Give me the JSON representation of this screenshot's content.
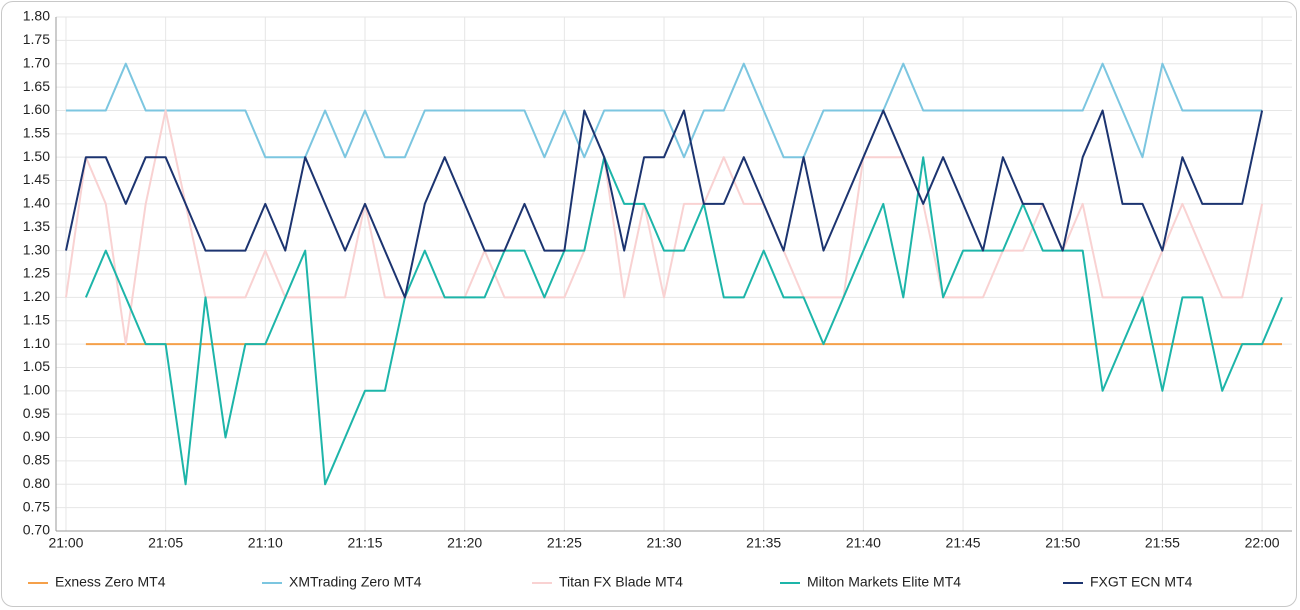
{
  "chart_data": {
    "type": "line",
    "x": [
      0,
      1,
      2,
      3,
      4,
      5,
      6,
      7,
      8,
      9,
      10,
      11,
      12,
      13,
      14,
      15,
      16,
      17,
      18,
      19,
      20,
      21,
      22,
      23,
      24,
      25,
      26,
      27,
      28,
      29,
      30,
      31,
      32,
      33,
      34,
      35,
      36,
      37,
      38,
      39,
      40,
      41,
      42,
      43,
      44,
      45,
      46,
      47,
      48,
      49,
      50,
      51,
      52,
      53,
      54,
      55,
      56,
      57,
      58,
      59,
      60,
      61
    ],
    "xlim": [
      -0.5,
      61.5
    ],
    "xticks": [
      {
        "value": 0,
        "label": "21:00"
      },
      {
        "value": 5,
        "label": "21:05"
      },
      {
        "value": 10,
        "label": "21:10"
      },
      {
        "value": 15,
        "label": "21:15"
      },
      {
        "value": 20,
        "label": "21:20"
      },
      {
        "value": 25,
        "label": "21:25"
      },
      {
        "value": 30,
        "label": "21:30"
      },
      {
        "value": 35,
        "label": "21:35"
      },
      {
        "value": 40,
        "label": "21:40"
      },
      {
        "value": 45,
        "label": "21:45"
      },
      {
        "value": 50,
        "label": "21:50"
      },
      {
        "value": 55,
        "label": "21:55"
      },
      {
        "value": 60,
        "label": "22:00"
      }
    ],
    "ylim": [
      0.7,
      1.8
    ],
    "yticks": [
      {
        "value": 0.7,
        "label": "0.70"
      },
      {
        "value": 0.75,
        "label": "0.75"
      },
      {
        "value": 0.8,
        "label": "0.80"
      },
      {
        "value": 0.85,
        "label": "0.85"
      },
      {
        "value": 0.9,
        "label": "0.90"
      },
      {
        "value": 0.95,
        "label": "0.95"
      },
      {
        "value": 1.0,
        "label": "1.00"
      },
      {
        "value": 1.05,
        "label": "1.05"
      },
      {
        "value": 1.1,
        "label": "1.10"
      },
      {
        "value": 1.15,
        "label": "1.15"
      },
      {
        "value": 1.2,
        "label": "1.20"
      },
      {
        "value": 1.25,
        "label": "1.25"
      },
      {
        "value": 1.3,
        "label": "1.30"
      },
      {
        "value": 1.35,
        "label": "1.35"
      },
      {
        "value": 1.4,
        "label": "1.40"
      },
      {
        "value": 1.45,
        "label": "1.45"
      },
      {
        "value": 1.5,
        "label": "1.50"
      },
      {
        "value": 1.55,
        "label": "1.55"
      },
      {
        "value": 1.6,
        "label": "1.60"
      },
      {
        "value": 1.65,
        "label": "1.65"
      },
      {
        "value": 1.7,
        "label": "1.70"
      },
      {
        "value": 1.75,
        "label": "1.75"
      },
      {
        "value": 1.8,
        "label": "1.80"
      }
    ],
    "grid": true,
    "legend": "bottom",
    "series": [
      {
        "name": "Exness Zero MT4",
        "color": "#f5a04a",
        "values": [
          null,
          1.1,
          1.1,
          1.1,
          1.1,
          1.1,
          1.1,
          1.1,
          1.1,
          1.1,
          1.1,
          1.1,
          1.1,
          1.1,
          1.1,
          1.1,
          1.1,
          1.1,
          1.1,
          1.1,
          1.1,
          1.1,
          1.1,
          1.1,
          1.1,
          1.1,
          1.1,
          1.1,
          1.1,
          1.1,
          1.1,
          1.1,
          1.1,
          1.1,
          1.1,
          1.1,
          1.1,
          1.1,
          1.1,
          1.1,
          1.1,
          1.1,
          1.1,
          1.1,
          1.1,
          1.1,
          1.1,
          1.1,
          1.1,
          1.1,
          1.1,
          1.1,
          1.1,
          1.1,
          1.1,
          1.1,
          1.1,
          1.1,
          1.1,
          1.1,
          1.1,
          1.1
        ]
      },
      {
        "name": "XMTrading Zero MT4",
        "color": "#7cc6e0",
        "values": [
          1.6,
          1.6,
          1.6,
          1.7,
          1.6,
          1.6,
          1.6,
          1.6,
          1.6,
          1.6,
          1.5,
          1.5,
          1.5,
          1.6,
          1.5,
          1.6,
          1.5,
          1.5,
          1.6,
          1.6,
          1.6,
          1.6,
          1.6,
          1.6,
          1.5,
          1.6,
          1.5,
          1.6,
          1.6,
          1.6,
          1.6,
          1.5,
          1.6,
          1.6,
          1.7,
          1.6,
          1.5,
          1.5,
          1.6,
          1.6,
          1.6,
          1.6,
          1.7,
          1.6,
          1.6,
          1.6,
          1.6,
          1.6,
          1.6,
          1.6,
          1.6,
          1.6,
          1.7,
          1.6,
          1.5,
          1.7,
          1.6,
          1.6,
          1.6,
          1.6,
          1.6,
          null
        ]
      },
      {
        "name": "Titan FX Blade MT4",
        "color": "#f9d2d2",
        "values": [
          1.2,
          1.5,
          1.4,
          1.1,
          1.4,
          1.6,
          1.4,
          1.2,
          1.2,
          1.2,
          1.3,
          1.2,
          1.2,
          1.2,
          1.2,
          1.4,
          1.2,
          1.2,
          1.2,
          1.2,
          1.2,
          1.3,
          1.2,
          1.2,
          1.2,
          1.2,
          1.3,
          1.5,
          1.2,
          1.4,
          1.2,
          1.4,
          1.4,
          1.5,
          1.4,
          1.4,
          1.3,
          1.2,
          1.2,
          1.2,
          1.5,
          1.5,
          1.5,
          1.4,
          1.2,
          1.2,
          1.2,
          1.3,
          1.3,
          1.4,
          1.3,
          1.4,
          1.2,
          1.2,
          1.2,
          1.3,
          1.4,
          1.3,
          1.2,
          1.2,
          1.4,
          null
        ]
      },
      {
        "name": "Milton Markets Elite MT4",
        "color": "#1db5a9",
        "values": [
          null,
          1.2,
          1.3,
          1.2,
          1.1,
          1.1,
          0.8,
          1.2,
          0.9,
          1.1,
          1.1,
          1.2,
          1.3,
          0.8,
          0.9,
          1.0,
          1.0,
          1.2,
          1.3,
          1.2,
          1.2,
          1.2,
          1.3,
          1.3,
          1.2,
          1.3,
          1.3,
          1.5,
          1.4,
          1.4,
          1.3,
          1.3,
          1.4,
          1.2,
          1.2,
          1.3,
          1.2,
          1.2,
          1.1,
          1.2,
          1.3,
          1.4,
          1.2,
          1.5,
          1.2,
          1.3,
          1.3,
          1.3,
          1.4,
          1.3,
          1.3,
          1.3,
          1.0,
          1.1,
          1.2,
          1.0,
          1.2,
          1.2,
          1.0,
          1.1,
          1.1,
          1.2
        ]
      },
      {
        "name": "FXGT ECN MT4",
        "color": "#1c3470",
        "values": [
          1.3,
          1.5,
          1.5,
          1.4,
          1.5,
          1.5,
          1.4,
          1.3,
          1.3,
          1.3,
          1.4,
          1.3,
          1.5,
          1.4,
          1.3,
          1.4,
          1.3,
          1.2,
          1.4,
          1.5,
          1.4,
          1.3,
          1.3,
          1.4,
          1.3,
          1.3,
          1.6,
          1.5,
          1.3,
          1.5,
          1.5,
          1.6,
          1.4,
          1.4,
          1.5,
          1.4,
          1.3,
          1.5,
          1.3,
          1.4,
          1.5,
          1.6,
          1.5,
          1.4,
          1.5,
          1.4,
          1.3,
          1.5,
          1.4,
          1.4,
          1.3,
          1.5,
          1.6,
          1.4,
          1.4,
          1.3,
          1.5,
          1.4,
          1.4,
          1.4,
          1.6,
          null
        ]
      }
    ]
  }
}
